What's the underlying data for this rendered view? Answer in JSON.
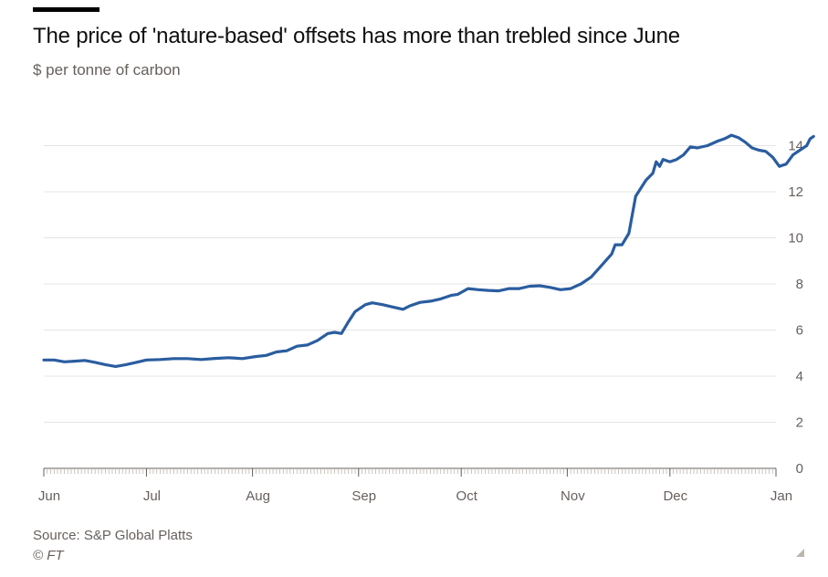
{
  "title": "The price of 'nature-based' offsets has more than trebled since June",
  "subtitle": "$ per tonne of carbon",
  "source": "Source: S&P Global Platts",
  "credit": "© FT",
  "colors": {
    "line": "#2a5d9f",
    "grid": "#e6e4e1",
    "axis_text": "#66605c",
    "baseline": "#66605c"
  },
  "chart_data": {
    "type": "line",
    "title": "The price of 'nature-based' offsets has more than trebled since June",
    "ylabel": "$ per tonne of carbon",
    "ylim": [
      0,
      14
    ],
    "yticks": [
      0,
      2,
      4,
      6,
      8,
      10,
      12,
      14
    ],
    "xlim": [
      "2021-06-01",
      "2022-01-01"
    ],
    "xticks": [
      "Jun",
      "Jul",
      "Aug",
      "Sep",
      "Oct",
      "Nov",
      "Dec",
      "Jan"
    ],
    "xtick_dates": [
      "2021-06-01",
      "2021-07-01",
      "2021-08-01",
      "2021-09-01",
      "2021-10-01",
      "2021-11-01",
      "2021-12-01",
      "2022-01-01"
    ],
    "grid": true,
    "y_axis_position": "right",
    "series": [
      {
        "values": [
          [
            "2021-06-01",
            4.7
          ],
          [
            "2021-06-04",
            4.7
          ],
          [
            "2021-06-07",
            4.62
          ],
          [
            "2021-06-10",
            4.65
          ],
          [
            "2021-06-13",
            4.68
          ],
          [
            "2021-06-16",
            4.6
          ],
          [
            "2021-06-19",
            4.5
          ],
          [
            "2021-06-22",
            4.42
          ],
          [
            "2021-06-25",
            4.5
          ],
          [
            "2021-06-28",
            4.6
          ],
          [
            "2021-07-01",
            4.7
          ],
          [
            "2021-07-05",
            4.72
          ],
          [
            "2021-07-09",
            4.76
          ],
          [
            "2021-07-13",
            4.76
          ],
          [
            "2021-07-17",
            4.72
          ],
          [
            "2021-07-21",
            4.77
          ],
          [
            "2021-07-25",
            4.8
          ],
          [
            "2021-07-29",
            4.76
          ],
          [
            "2021-08-02",
            4.85
          ],
          [
            "2021-08-05",
            4.9
          ],
          [
            "2021-08-08",
            5.05
          ],
          [
            "2021-08-11",
            5.1
          ],
          [
            "2021-08-14",
            5.3
          ],
          [
            "2021-08-17",
            5.35
          ],
          [
            "2021-08-20",
            5.55
          ],
          [
            "2021-08-23",
            5.85
          ],
          [
            "2021-08-25",
            5.9
          ],
          [
            "2021-08-27",
            5.85
          ],
          [
            "2021-08-29",
            6.35
          ],
          [
            "2021-08-31",
            6.8
          ],
          [
            "2021-09-03",
            7.1
          ],
          [
            "2021-09-05",
            7.18
          ],
          [
            "2021-09-08",
            7.1
          ],
          [
            "2021-09-11",
            7.0
          ],
          [
            "2021-09-14",
            6.9
          ],
          [
            "2021-09-16",
            7.05
          ],
          [
            "2021-09-19",
            7.2
          ],
          [
            "2021-09-22",
            7.25
          ],
          [
            "2021-09-25",
            7.35
          ],
          [
            "2021-09-28",
            7.5
          ],
          [
            "2021-09-30",
            7.55
          ],
          [
            "2021-10-03",
            7.8
          ],
          [
            "2021-10-06",
            7.75
          ],
          [
            "2021-10-09",
            7.72
          ],
          [
            "2021-10-12",
            7.7
          ],
          [
            "2021-10-15",
            7.8
          ],
          [
            "2021-10-18",
            7.8
          ],
          [
            "2021-10-21",
            7.9
          ],
          [
            "2021-10-24",
            7.92
          ],
          [
            "2021-10-27",
            7.85
          ],
          [
            "2021-10-30",
            7.75
          ],
          [
            "2021-11-02",
            7.8
          ],
          [
            "2021-11-05",
            8.0
          ],
          [
            "2021-11-08",
            8.3
          ],
          [
            "2021-11-11",
            8.8
          ],
          [
            "2021-11-14",
            9.3
          ],
          [
            "2021-11-15",
            9.7
          ],
          [
            "2021-11-17",
            9.7
          ],
          [
            "2021-11-19",
            10.2
          ],
          [
            "2021-11-21",
            11.8
          ],
          [
            "2021-11-24",
            12.5
          ],
          [
            "2021-11-26",
            12.8
          ],
          [
            "2021-11-27",
            13.3
          ],
          [
            "2021-11-28",
            13.1
          ],
          [
            "2021-11-29",
            13.4
          ],
          [
            "2021-12-01",
            13.3
          ],
          [
            "2021-12-03",
            13.4
          ],
          [
            "2021-12-05",
            13.6
          ],
          [
            "2021-12-07",
            13.95
          ],
          [
            "2021-12-09",
            13.9
          ],
          [
            "2021-12-12",
            14.0
          ],
          [
            "2021-12-15",
            14.2
          ],
          [
            "2021-12-17",
            14.3
          ],
          [
            "2021-12-19",
            14.45
          ],
          [
            "2021-12-21",
            14.35
          ],
          [
            "2021-12-23",
            14.15
          ],
          [
            "2021-12-25",
            13.9
          ],
          [
            "2021-12-27",
            13.8
          ],
          [
            "2021-12-29",
            13.75
          ],
          [
            "2021-12-31",
            13.5
          ],
          [
            "2022-01-02",
            13.1
          ],
          [
            "2022-01-04",
            13.2
          ],
          [
            "2022-01-06",
            13.6
          ],
          [
            "2022-01-08",
            13.8
          ],
          [
            "2022-01-10",
            14.0
          ],
          [
            "2022-01-11",
            14.3
          ],
          [
            "2022-01-12",
            14.4
          ]
        ]
      }
    ]
  }
}
